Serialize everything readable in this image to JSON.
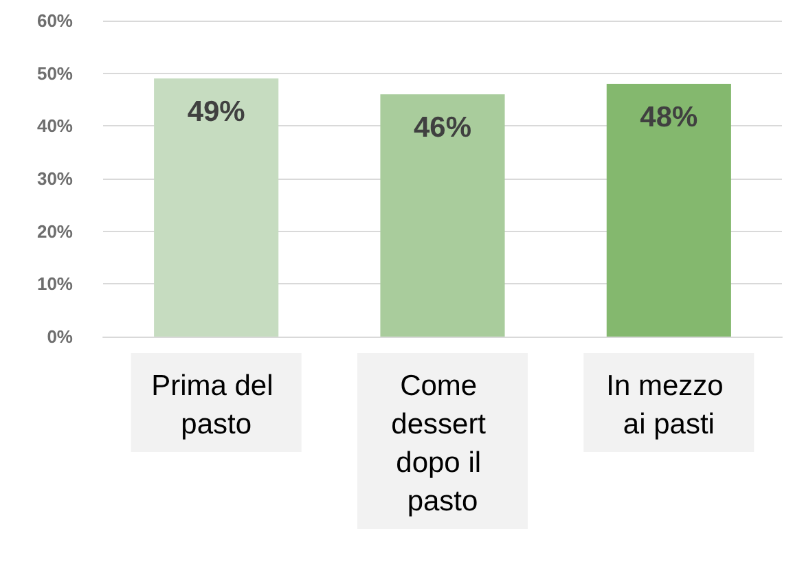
{
  "chart_data": {
    "type": "bar",
    "categories": [
      "Prima del pasto",
      "Come dessert dopo il pasto",
      "In mezzo ai pasti"
    ],
    "values": [
      49,
      46,
      48
    ],
    "colors": [
      "#c6dcc0",
      "#a9cc9c",
      "#84b86e"
    ],
    "value_labels": [
      "49%",
      "46%",
      "48%"
    ],
    "ylim": [
      0,
      60
    ],
    "yticks": [
      {
        "value": 0,
        "label": "0%"
      },
      {
        "value": 10,
        "label": "10%"
      },
      {
        "value": 20,
        "label": "20%"
      },
      {
        "value": 30,
        "label": "30%"
      },
      {
        "value": 40,
        "label": "40%"
      },
      {
        "value": 50,
        "label": "50%"
      },
      {
        "value": 60,
        "label": "60%"
      }
    ],
    "grid": true
  }
}
